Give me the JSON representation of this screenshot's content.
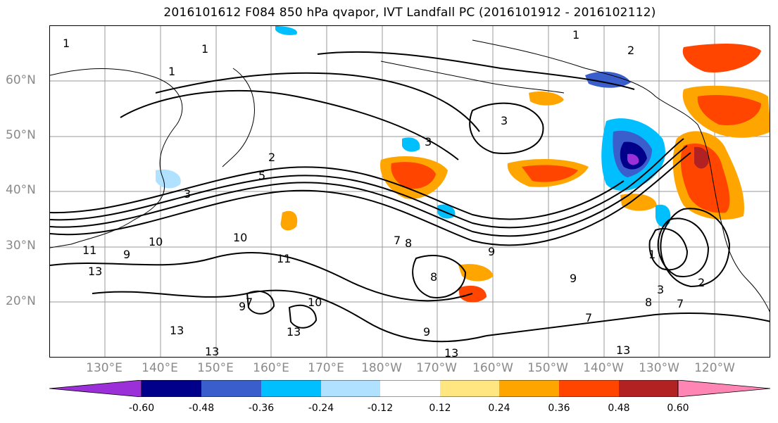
{
  "title": "2016101612 F084 850 hPa qvapor, IVT Landfall PC (2016101912 - 2016102112)",
  "lat_labels": [
    "60°N",
    "50°N",
    "40°N",
    "30°N",
    "20°N"
  ],
  "lon_labels": [
    "130°E",
    "140°E",
    "150°E",
    "160°E",
    "170°E",
    "180°W",
    "170°W",
    "160°W",
    "150°W",
    "140°W",
    "130°W",
    "120°W"
  ],
  "contour_labels": [
    "1",
    "1",
    "1",
    "1",
    "2",
    "3",
    "3",
    "2",
    "5",
    "3",
    "7",
    "8",
    "9",
    "10",
    "10",
    "11",
    "13",
    "9",
    "11",
    "7",
    "8",
    "9",
    "10",
    "13",
    "13",
    "13",
    "9",
    "13",
    "1",
    "2",
    "3",
    "7",
    "8",
    "13",
    "7",
    "9"
  ],
  "colorbar": {
    "ticks": [
      "-0.60",
      "-0.48",
      "-0.36",
      "-0.24",
      "-0.12",
      "0.12",
      "0.24",
      "0.36",
      "0.48",
      "0.60"
    ],
    "colors": [
      "#9b30d9",
      "#00008b",
      "#3a5fcd",
      "#00bfff",
      "#b0e2ff",
      "#ffffff",
      "#ffe680",
      "#ffa500",
      "#ff4500",
      "#b22222",
      "#ff85b5"
    ]
  }
}
